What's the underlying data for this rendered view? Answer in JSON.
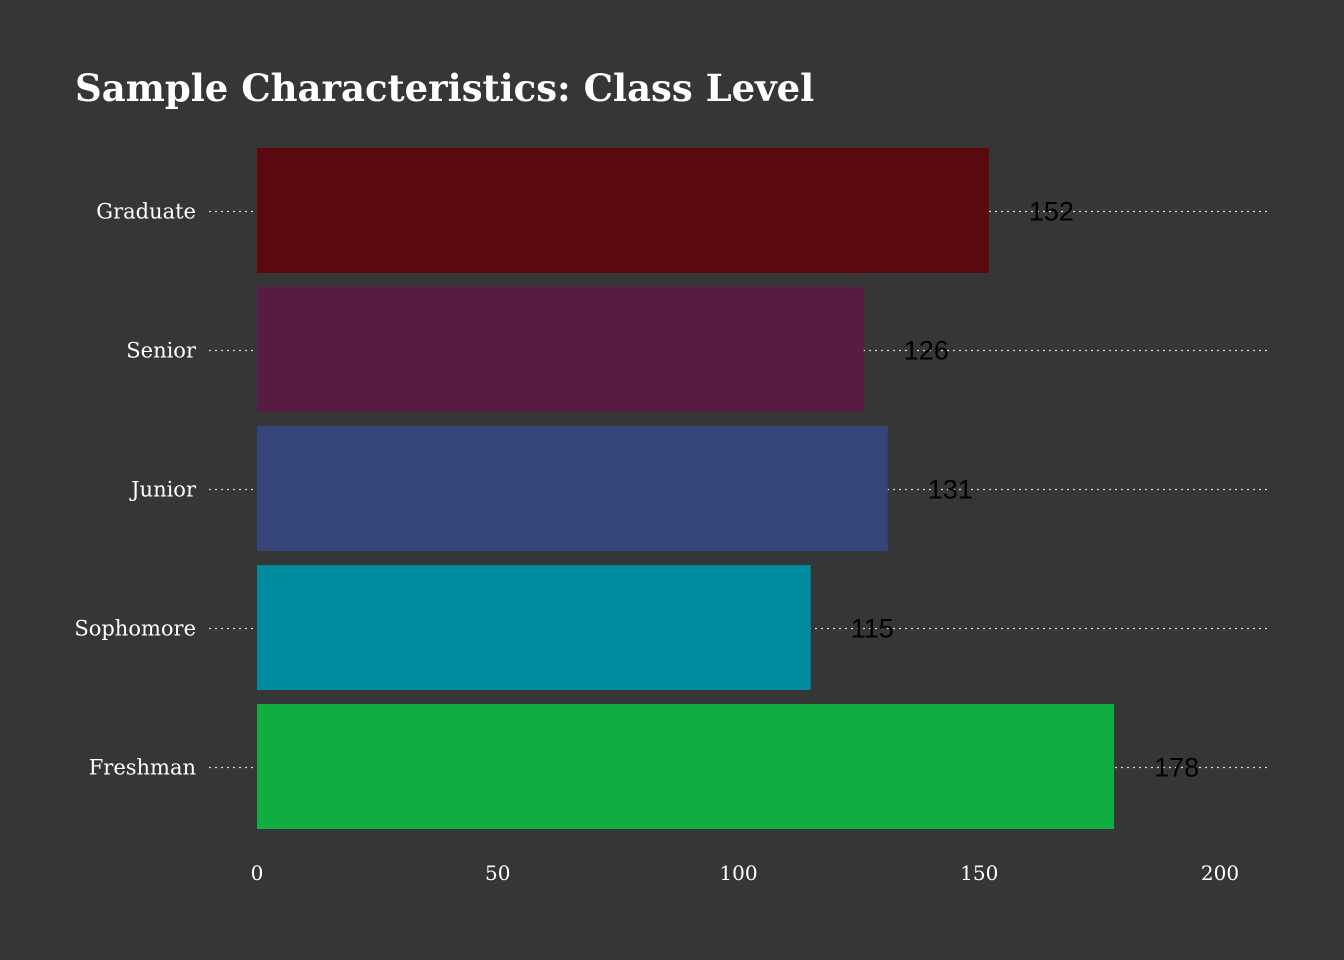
{
  "chart_data": {
    "type": "bar",
    "orientation": "horizontal",
    "title": "Sample Characteristics: Class Level",
    "xlabel": "",
    "ylabel": "",
    "categories": [
      "Graduate",
      "Senior",
      "Junior",
      "Sophomore",
      "Freshman"
    ],
    "values": [
      152,
      126,
      131,
      115,
      178
    ],
    "value_labels": [
      "152",
      "126",
      "131",
      "115",
      "178"
    ],
    "colors": [
      "#5a0a0e",
      "#571b44",
      "#34457a",
      "#008b9f",
      "#10ad40"
    ],
    "xlim": [
      0,
      200
    ],
    "xticks": [
      0,
      50,
      100,
      150,
      200
    ],
    "xtick_labels": [
      "0",
      "50",
      "100",
      "150",
      "200"
    ],
    "grid": "dotted horizontal lines at each category",
    "legend": "none",
    "background": "#363636",
    "text_color": "#ffffff",
    "value_label_color": "#000000"
  }
}
